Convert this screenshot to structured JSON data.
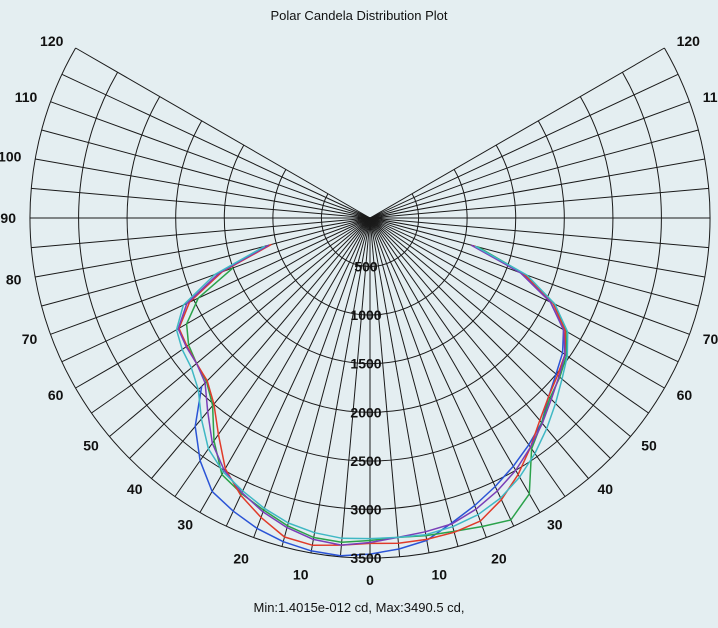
{
  "chart_data": {
    "type": "line",
    "subtype": "polar",
    "title": "Polar Candela Distribution Plot",
    "footer": "Min:1.4015e-012 cd, Max:3490.5 cd,",
    "angle_range": [
      0,
      120
    ],
    "angle_ticks": [
      0,
      10,
      20,
      30,
      40,
      50,
      60,
      70,
      80,
      90,
      100,
      110,
      120
    ],
    "radial_range": [
      0,
      3500
    ],
    "radial_ticks": [
      500,
      1000,
      1500,
      2000,
      2500,
      3000,
      3500
    ],
    "radial_tick_labels": [
      "500",
      "1000",
      "1500",
      "2000",
      "2500",
      "3000",
      "3500"
    ],
    "grid": true,
    "colors": {
      "background": "#e4eef1",
      "grid": "#1a1a1a",
      "series": [
        "#2b54d6",
        "#2aa24a",
        "#e03b2a",
        "#7a3fb8",
        "#3fb8c4"
      ]
    },
    "series": [
      {
        "color": "#2b54d6",
        "angles": [
          -45,
          -40,
          -35,
          -30,
          -25,
          -20,
          -15,
          -10,
          -5,
          0,
          5,
          10,
          15,
          20,
          25,
          30,
          35,
          40,
          45,
          50,
          55,
          60,
          65,
          70,
          75
        ],
        "values": [
          2450,
          2800,
          3050,
          3250,
          3330,
          3400,
          3450,
          3480,
          3490,
          3460,
          3420,
          3370,
          3250,
          3150,
          3050,
          2950,
          2850,
          2750,
          2600,
          2500,
          2420,
          2300,
          2050,
          1650,
          1100
        ]
      },
      {
        "color": "#2aa24a",
        "angles": [
          -70,
          -65,
          -60,
          -55,
          -50,
          -45,
          -40,
          -35,
          -30,
          -25,
          -20,
          -15,
          -10,
          -5,
          0,
          5,
          10,
          15,
          20,
          25,
          30,
          35,
          40,
          45,
          50,
          55,
          60,
          65,
          70,
          75
        ],
        "values": [
          1500,
          1950,
          2180,
          2280,
          2330,
          2380,
          2520,
          2800,
          3050,
          3130,
          3200,
          3280,
          3340,
          3350,
          3320,
          3300,
          3320,
          3340,
          3380,
          3430,
          3280,
          2900,
          2750,
          2620,
          2550,
          2470,
          2330,
          2100,
          1700,
          1150
        ]
      },
      {
        "color": "#e03b2a",
        "angles": [
          -75,
          -70,
          -65,
          -60,
          -55,
          -50,
          -45,
          -40,
          -35,
          -30,
          -25,
          -20,
          -15,
          -10,
          -5,
          0,
          5,
          10,
          15,
          20,
          25,
          30,
          35,
          40,
          45,
          50,
          55,
          60,
          65,
          70,
          75
        ],
        "values": [
          1050,
          1620,
          2050,
          2270,
          2300,
          2330,
          2370,
          2500,
          2720,
          2980,
          3150,
          3280,
          3400,
          3420,
          3380,
          3350,
          3360,
          3360,
          3350,
          3320,
          3200,
          3050,
          2880,
          2720,
          2600,
          2520,
          2450,
          2320,
          2080,
          1680,
          1100
        ]
      },
      {
        "color": "#7a3fb8",
        "angles": [
          -75,
          -70,
          -65,
          -60,
          -55,
          -50,
          -45,
          -40,
          -35,
          -30,
          -25,
          -20,
          -15,
          -10,
          -5,
          0,
          5,
          10,
          15,
          20,
          25,
          30,
          35,
          40,
          45,
          50,
          55,
          60,
          65,
          70,
          75
        ],
        "values": [
          1080,
          1650,
          2080,
          2280,
          2310,
          2330,
          2400,
          2600,
          2830,
          3000,
          3120,
          3220,
          3300,
          3360,
          3380,
          3340,
          3300,
          3280,
          3260,
          3190,
          3100,
          3000,
          2880,
          2760,
          2640,
          2540,
          2450,
          2300,
          2050,
          1650,
          1080
        ]
      },
      {
        "color": "#3fb8c4",
        "angles": [
          -75,
          -70,
          -65,
          -60,
          -55,
          -50,
          -45,
          -40,
          -35,
          -30,
          -25,
          -20,
          -15,
          -10,
          -5,
          0,
          5,
          10,
          15,
          20,
          25,
          30,
          35,
          40,
          45,
          50,
          55,
          60,
          65,
          70,
          75
        ],
        "values": [
          1120,
          1700,
          2120,
          2300,
          2360,
          2400,
          2500,
          2700,
          2900,
          3020,
          3100,
          3180,
          3250,
          3290,
          3310,
          3300,
          3300,
          3310,
          3290,
          3250,
          3180,
          3080,
          2960,
          2830,
          2700,
          2580,
          2480,
          2350,
          2100,
          1720,
          1120
        ]
      }
    ]
  }
}
